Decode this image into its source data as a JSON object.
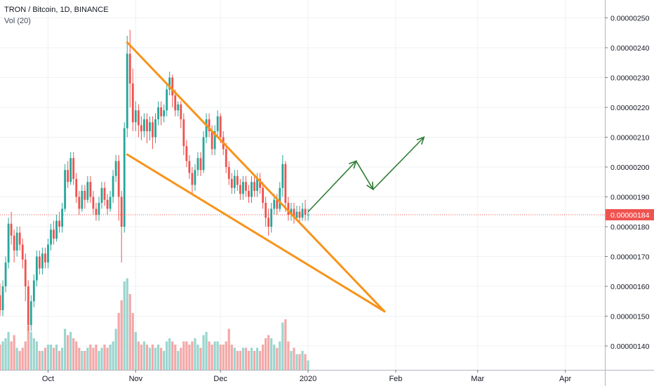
{
  "legend": {
    "title": "TRON / Bitcoin, 1D, BINANCE",
    "volume": "Vol (20)"
  },
  "colors": {
    "up": "#26a69a",
    "down": "#ef5350",
    "vol_up": "#9ad6cf",
    "vol_down": "#f4a8a8",
    "grid": "#eef0f4",
    "axis": "#787b86",
    "wedge": "#f7931a",
    "arrow": "#2e7d32",
    "last_price_bg": "#ef5350",
    "text": "#131722"
  },
  "chart_data": {
    "type": "candlestick",
    "title": "TRON / Bitcoin, 1D, BINANCE",
    "indicator": "Vol (20)",
    "x_ticks": [
      "Oct",
      "Nov",
      "Dec",
      "2020",
      "Feb",
      "Mar",
      "Apr"
    ],
    "x_tick_dates": [
      "2019-10-01",
      "2019-11-01",
      "2019-12-01",
      "2020-01-01",
      "2020-02-01",
      "2020-03-01",
      "2020-04-01"
    ],
    "x_range": [
      "2019-09-14",
      "2020-04-15"
    ],
    "y_ticks": [
      "0.00000140",
      "0.00000150",
      "0.00000160",
      "0.00000170",
      "0.00000180",
      "0.00000190",
      "0.00000200",
      "0.00000210",
      "0.00000220",
      "0.00000230",
      "0.00000240",
      "0.00000250"
    ],
    "y_range": [
      1.32e-06,
      2.56e-06
    ],
    "last_price": "0.00000184",
    "volume_scale_max": 30,
    "candles": [
      [
        "2019-09-14",
        1.57,
        1.52,
        1.61,
        1.5,
        8
      ],
      [
        "2019-09-15",
        1.52,
        1.6,
        1.62,
        1.5,
        9
      ],
      [
        "2019-09-16",
        1.6,
        1.68,
        1.7,
        1.58,
        10
      ],
      [
        "2019-09-17",
        1.68,
        1.81,
        1.83,
        1.66,
        12
      ],
      [
        "2019-09-18",
        1.81,
        1.77,
        1.85,
        1.74,
        9
      ],
      [
        "2019-09-19",
        1.77,
        1.72,
        1.79,
        1.68,
        11
      ],
      [
        "2019-09-20",
        1.72,
        1.78,
        1.8,
        1.7,
        7
      ],
      [
        "2019-09-21",
        1.78,
        1.74,
        1.8,
        1.72,
        6
      ],
      [
        "2019-09-22",
        1.74,
        1.69,
        1.76,
        1.66,
        7
      ],
      [
        "2019-09-23",
        1.69,
        1.6,
        1.71,
        1.55,
        9
      ],
      [
        "2019-09-24",
        1.6,
        1.47,
        1.62,
        1.45,
        14
      ],
      [
        "2019-09-25",
        1.47,
        1.55,
        1.57,
        1.45,
        12
      ],
      [
        "2019-09-26",
        1.55,
        1.62,
        1.64,
        1.53,
        10
      ],
      [
        "2019-09-27",
        1.62,
        1.7,
        1.72,
        1.6,
        9
      ],
      [
        "2019-09-28",
        1.7,
        1.66,
        1.72,
        1.64,
        6
      ],
      [
        "2019-09-29",
        1.66,
        1.71,
        1.73,
        1.64,
        6
      ],
      [
        "2019-09-30",
        1.71,
        1.68,
        1.73,
        1.66,
        7
      ],
      [
        "2019-10-01",
        1.68,
        1.74,
        1.76,
        1.66,
        8
      ],
      [
        "2019-10-02",
        1.74,
        1.79,
        1.81,
        1.72,
        8
      ],
      [
        "2019-10-03",
        1.79,
        1.76,
        1.82,
        1.74,
        7
      ],
      [
        "2019-10-04",
        1.76,
        1.82,
        1.84,
        1.75,
        8
      ],
      [
        "2019-10-05",
        1.82,
        1.8,
        1.85,
        1.78,
        6
      ],
      [
        "2019-10-06",
        1.8,
        1.86,
        1.88,
        1.78,
        7
      ],
      [
        "2019-10-07",
        1.86,
        1.99,
        2.01,
        1.85,
        13
      ],
      [
        "2019-10-08",
        1.99,
        1.95,
        2.02,
        1.93,
        11
      ],
      [
        "2019-10-09",
        1.95,
        2.03,
        2.05,
        1.94,
        12
      ],
      [
        "2019-10-10",
        2.03,
        1.96,
        2.05,
        1.94,
        10
      ],
      [
        "2019-10-11",
        1.96,
        1.9,
        1.98,
        1.88,
        9
      ],
      [
        "2019-10-12",
        1.9,
        1.86,
        1.92,
        1.84,
        7
      ],
      [
        "2019-10-13",
        1.86,
        1.92,
        1.94,
        1.85,
        6
      ],
      [
        "2019-10-14",
        1.92,
        1.89,
        1.94,
        1.86,
        6
      ],
      [
        "2019-10-15",
        1.89,
        1.95,
        1.97,
        1.88,
        7
      ],
      [
        "2019-10-16",
        1.95,
        1.9,
        1.97,
        1.88,
        8
      ],
      [
        "2019-10-17",
        1.9,
        1.86,
        1.92,
        1.84,
        7
      ],
      [
        "2019-10-18",
        1.86,
        1.84,
        1.88,
        1.82,
        8
      ],
      [
        "2019-10-19",
        1.84,
        1.88,
        1.9,
        1.82,
        6
      ],
      [
        "2019-10-20",
        1.88,
        1.93,
        1.95,
        1.86,
        7
      ],
      [
        "2019-10-21",
        1.93,
        1.89,
        1.95,
        1.87,
        8
      ],
      [
        "2019-10-22",
        1.89,
        1.86,
        1.91,
        1.84,
        7
      ],
      [
        "2019-10-23",
        1.86,
        1.9,
        1.92,
        1.85,
        8
      ],
      [
        "2019-10-24",
        1.9,
        1.97,
        1.99,
        1.88,
        9
      ],
      [
        "2019-10-25",
        1.97,
        2.02,
        2.04,
        1.95,
        13
      ],
      [
        "2019-10-26",
        2.02,
        1.9,
        2.04,
        1.82,
        18
      ],
      [
        "2019-10-27",
        1.9,
        1.8,
        1.92,
        1.68,
        22
      ],
      [
        "2019-10-28",
        1.8,
        2.13,
        2.15,
        1.78,
        28
      ],
      [
        "2019-10-29",
        2.13,
        2.38,
        2.44,
        2.1,
        29
      ],
      [
        "2019-10-30",
        2.38,
        2.28,
        2.46,
        2.2,
        24
      ],
      [
        "2019-10-31",
        2.28,
        2.15,
        2.33,
        2.12,
        18
      ],
      [
        "2019-11-01",
        2.15,
        2.19,
        2.22,
        2.12,
        12
      ],
      [
        "2019-11-02",
        2.19,
        2.14,
        2.21,
        2.1,
        9
      ],
      [
        "2019-11-03",
        2.14,
        2.12,
        2.17,
        2.09,
        8
      ],
      [
        "2019-11-04",
        2.12,
        2.16,
        2.18,
        2.1,
        9
      ],
      [
        "2019-11-05",
        2.16,
        2.12,
        2.18,
        2.08,
        8
      ],
      [
        "2019-11-06",
        2.12,
        2.15,
        2.17,
        2.09,
        7
      ],
      [
        "2019-11-07",
        2.15,
        2.1,
        2.17,
        2.06,
        8
      ],
      [
        "2019-11-08",
        2.1,
        2.16,
        2.18,
        2.08,
        7
      ],
      [
        "2019-11-09",
        2.16,
        2.2,
        2.22,
        2.14,
        8
      ],
      [
        "2019-11-10",
        2.2,
        2.17,
        2.22,
        2.14,
        7
      ],
      [
        "2019-11-11",
        2.17,
        2.19,
        2.21,
        2.15,
        6
      ],
      [
        "2019-11-12",
        2.19,
        2.26,
        2.28,
        2.17,
        9
      ],
      [
        "2019-11-13",
        2.26,
        2.3,
        2.32,
        2.24,
        10
      ],
      [
        "2019-11-14",
        2.3,
        2.24,
        2.31,
        2.2,
        9
      ],
      [
        "2019-11-15",
        2.24,
        2.19,
        2.26,
        2.17,
        8
      ],
      [
        "2019-11-16",
        2.19,
        2.21,
        2.22,
        2.17,
        6
      ],
      [
        "2019-11-17",
        2.21,
        2.16,
        2.22,
        2.13,
        7
      ],
      [
        "2019-11-18",
        2.16,
        2.07,
        2.18,
        2.04,
        9
      ],
      [
        "2019-11-19",
        2.07,
        2.02,
        2.09,
        2.0,
        9
      ],
      [
        "2019-11-20",
        2.02,
        1.98,
        2.04,
        1.96,
        8
      ],
      [
        "2019-11-21",
        1.98,
        1.94,
        2.0,
        1.91,
        9
      ],
      [
        "2019-11-22",
        1.94,
        1.99,
        2.01,
        1.92,
        10
      ],
      [
        "2019-11-23",
        1.99,
        2.03,
        2.05,
        1.97,
        8
      ],
      [
        "2019-11-24",
        2.03,
        1.99,
        2.05,
        1.97,
        7
      ],
      [
        "2019-11-25",
        1.99,
        2.1,
        2.12,
        1.98,
        11
      ],
      [
        "2019-11-26",
        2.1,
        2.16,
        2.18,
        2.08,
        12
      ],
      [
        "2019-11-27",
        2.16,
        2.12,
        2.18,
        2.1,
        9
      ],
      [
        "2019-11-28",
        2.12,
        2.06,
        2.14,
        2.04,
        8
      ],
      [
        "2019-11-29",
        2.06,
        2.12,
        2.14,
        2.04,
        9
      ],
      [
        "2019-11-30",
        2.12,
        2.17,
        2.19,
        2.1,
        9
      ],
      [
        "2019-12-01",
        2.17,
        2.1,
        2.18,
        2.08,
        8
      ],
      [
        "2019-12-02",
        2.1,
        2.06,
        2.12,
        2.04,
        8
      ],
      [
        "2019-12-03",
        2.06,
        2.0,
        2.08,
        1.98,
        9
      ],
      [
        "2019-12-04",
        2.0,
        1.96,
        2.02,
        1.94,
        13
      ],
      [
        "2019-12-05",
        1.96,
        1.93,
        1.98,
        1.91,
        8
      ],
      [
        "2019-12-06",
        1.93,
        1.97,
        1.99,
        1.91,
        7
      ],
      [
        "2019-12-07",
        1.97,
        1.94,
        1.99,
        1.92,
        6
      ],
      [
        "2019-12-08",
        1.94,
        1.91,
        1.96,
        1.89,
        6
      ],
      [
        "2019-12-09",
        1.91,
        1.95,
        1.97,
        1.89,
        7
      ],
      [
        "2019-12-10",
        1.95,
        1.92,
        1.97,
        1.9,
        7
      ],
      [
        "2019-12-11",
        1.92,
        1.9,
        1.94,
        1.88,
        6
      ],
      [
        "2019-12-12",
        1.9,
        1.95,
        1.97,
        1.88,
        7
      ],
      [
        "2019-12-13",
        1.95,
        1.92,
        1.97,
        1.9,
        6
      ],
      [
        "2019-12-14",
        1.92,
        1.96,
        1.98,
        1.9,
        7
      ],
      [
        "2019-12-15",
        1.96,
        1.93,
        1.98,
        1.91,
        6
      ],
      [
        "2019-12-16",
        1.93,
        1.88,
        1.95,
        1.86,
        8
      ],
      [
        "2019-12-17",
        1.88,
        1.83,
        1.9,
        1.8,
        10
      ],
      [
        "2019-12-18",
        1.83,
        1.8,
        1.86,
        1.77,
        11
      ],
      [
        "2019-12-19",
        1.8,
        1.86,
        1.88,
        1.78,
        10
      ],
      [
        "2019-12-20",
        1.86,
        1.89,
        1.91,
        1.84,
        8
      ],
      [
        "2019-12-21",
        1.89,
        1.86,
        1.91,
        1.84,
        7
      ],
      [
        "2019-12-22",
        1.86,
        1.93,
        1.95,
        1.85,
        9
      ],
      [
        "2019-12-23",
        1.93,
        2.01,
        2.04,
        1.9,
        15
      ],
      [
        "2019-12-24",
        2.01,
        1.88,
        2.02,
        1.85,
        16
      ],
      [
        "2019-12-25",
        1.88,
        1.84,
        1.9,
        1.82,
        9
      ],
      [
        "2019-12-26",
        1.84,
        1.86,
        1.88,
        1.82,
        6
      ],
      [
        "2019-12-27",
        1.86,
        1.83,
        1.88,
        1.81,
        7
      ],
      [
        "2019-12-28",
        1.83,
        1.85,
        1.87,
        1.82,
        5
      ],
      [
        "2019-12-29",
        1.85,
        1.83,
        1.87,
        1.81,
        5
      ],
      [
        "2019-12-30",
        1.83,
        1.86,
        1.88,
        1.82,
        6
      ],
      [
        "2019-12-31",
        1.86,
        1.84,
        1.89,
        1.82,
        5
      ],
      [
        "2020-01-01",
        1.84,
        1.84,
        1.86,
        1.82,
        3
      ]
    ],
    "candle_fields": [
      "date",
      "open",
      "close",
      "high",
      "low",
      "volume"
    ],
    "price_multiplier": 1e-06,
    "drawings": {
      "wedge_upper": [
        [
          "2019-10-29",
          2.418e-06
        ],
        [
          "2020-01-28",
          1.516e-06
        ]
      ],
      "wedge_lower": [
        [
          "2019-10-29",
          2.042e-06
        ],
        [
          "2020-01-28",
          1.516e-06
        ]
      ],
      "projection_path": [
        [
          "2020-01-01",
          1.85e-06
        ],
        [
          "2020-01-18",
          2.02e-06
        ],
        [
          "2020-01-24",
          1.925e-06
        ],
        [
          "2020-02-11",
          2.1e-06
        ]
      ]
    }
  }
}
